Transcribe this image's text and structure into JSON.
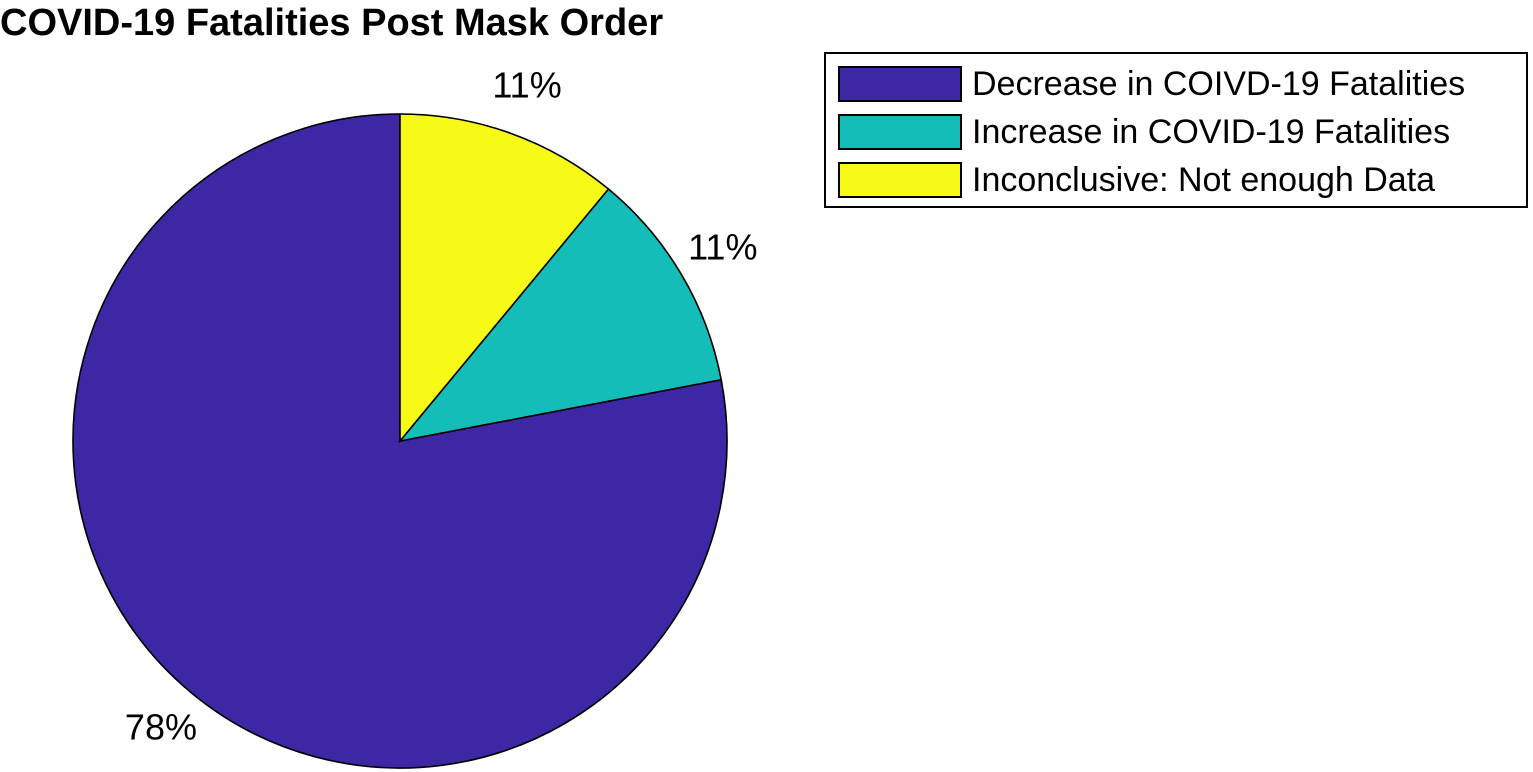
{
  "chart_data": {
    "type": "pie",
    "title": "COVID-19 Fatalities Post Mask Order",
    "slices": [
      {
        "name": "Decrease in COIVD-19 Fatalities",
        "value": 78,
        "label": "78%",
        "color": "#3d27a5"
      },
      {
        "name": "Increase in COVID-19 Fatalities",
        "value": 11,
        "label": "11%",
        "color": "#14bdb8"
      },
      {
        "name": "Inconclusive: Not enough Data",
        "value": 11,
        "label": "11%",
        "color": "#f7f916"
      }
    ],
    "legend_position": "top-right"
  }
}
